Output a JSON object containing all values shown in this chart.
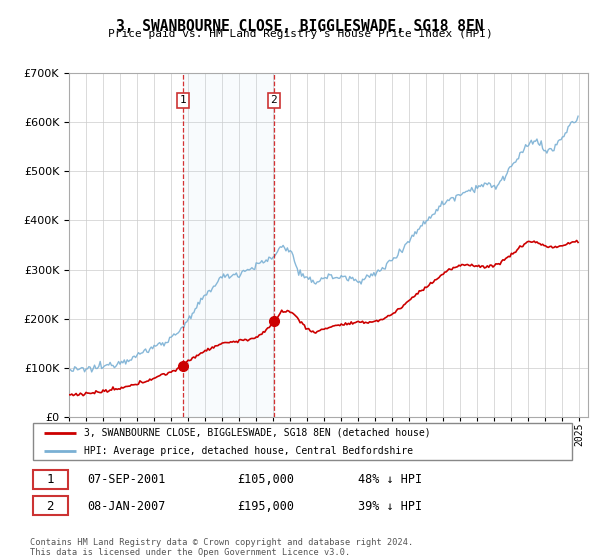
{
  "title": "3, SWANBOURNE CLOSE, BIGGLESWADE, SG18 8EN",
  "subtitle": "Price paid vs. HM Land Registry's House Price Index (HPI)",
  "sale1_date": "07-SEP-2001",
  "sale1_price": 105000,
  "sale1_year": 2001.71,
  "sale2_date": "08-JAN-2007",
  "sale2_price": 195000,
  "sale2_year": 2007.04,
  "sale1_hpi_pct": "48% ↓ HPI",
  "sale2_hpi_pct": "39% ↓ HPI",
  "legend_red": "3, SWANBOURNE CLOSE, BIGGLESWADE, SG18 8EN (detached house)",
  "legend_blue": "HPI: Average price, detached house, Central Bedfordshire",
  "footer": "Contains HM Land Registry data © Crown copyright and database right 2024.\nThis data is licensed under the Open Government Licence v3.0.",
  "red_color": "#cc0000",
  "blue_color": "#7ab0d4",
  "background_color": "#ffffff",
  "grid_color": "#cccccc",
  "ylim": [
    0,
    700000
  ],
  "xlim_start": 1995.0,
  "xlim_end": 2025.5
}
